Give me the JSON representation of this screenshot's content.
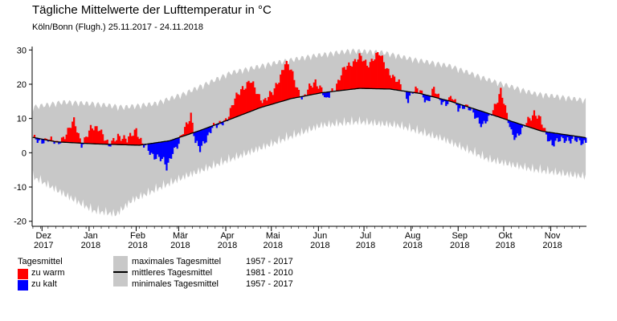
{
  "title": "Tägliche Mittelwerte der Lufttemperatur in °C",
  "subtitle": "Köln/Bonn (Flugh.)  25.11.2017 - 24.11.2018",
  "legend": {
    "group_title": "Tagesmittel",
    "too_warm": "zu warm",
    "too_cold": "zu kalt",
    "max_label": "maximales Tagesmittel",
    "max_period": "1957 - 2017",
    "mean_label": "mittleres Tagesmittel",
    "mean_period": "1981 - 2010",
    "min_label": "minimales Tagesmittel",
    "min_period": "1957 - 2017"
  },
  "colors": {
    "warm": "#ff0000",
    "cold": "#0000ff",
    "band": "#c8c8c8",
    "mean": "#000000"
  },
  "chart_data": {
    "type": "area",
    "title": "Tägliche Mittelwerte der Lufttemperatur in °C",
    "subtitle": "Köln/Bonn (Flugh.)  25.11.2017 - 24.11.2018",
    "xlabel": "",
    "ylabel": "°C",
    "ylim": [
      -21,
      31
    ],
    "yticks": [
      -20,
      -10,
      0,
      10,
      20,
      30
    ],
    "days": 365,
    "x_ticks": [
      {
        "month": "Dez",
        "year": "2017",
        "day": 6
      },
      {
        "month": "Jan",
        "year": "2018",
        "day": 37
      },
      {
        "month": "Feb",
        "year": "2018",
        "day": 68
      },
      {
        "month": "Mär",
        "year": "2018",
        "day": 96
      },
      {
        "month": "Apr",
        "year": "2018",
        "day": 127
      },
      {
        "month": "Mai",
        "year": "2018",
        "day": 157
      },
      {
        "month": "Jun",
        "year": "2018",
        "day": 188
      },
      {
        "month": "Jul",
        "year": "2018",
        "day": 218
      },
      {
        "month": "Aug",
        "year": "2018",
        "day": 249
      },
      {
        "month": "Sep",
        "year": "2018",
        "day": 280
      },
      {
        "month": "Okt",
        "year": "2018",
        "day": 310
      },
      {
        "month": "Nov",
        "year": "2018",
        "day": 341
      }
    ],
    "mean_keypoints": [
      [
        0,
        4.5
      ],
      [
        15,
        3.2
      ],
      [
        40,
        2.6
      ],
      [
        70,
        2.2
      ],
      [
        90,
        3.5
      ],
      [
        110,
        6.5
      ],
      [
        130,
        9.8
      ],
      [
        150,
        13.2
      ],
      [
        170,
        15.8
      ],
      [
        190,
        17.5
      ],
      [
        215,
        18.8
      ],
      [
        235,
        18.6
      ],
      [
        255,
        17.3
      ],
      [
        275,
        15.0
      ],
      [
        295,
        12.2
      ],
      [
        315,
        9.2
      ],
      [
        335,
        6.3
      ],
      [
        364,
        4.4
      ]
    ],
    "max_keypoints": [
      [
        0,
        12
      ],
      [
        20,
        13.5
      ],
      [
        40,
        13
      ],
      [
        60,
        12
      ],
      [
        80,
        13
      ],
      [
        100,
        16
      ],
      [
        130,
        22
      ],
      [
        160,
        25
      ],
      [
        185,
        27
      ],
      [
        210,
        28.5
      ],
      [
        230,
        28
      ],
      [
        250,
        26
      ],
      [
        275,
        24
      ],
      [
        300,
        20
      ],
      [
        330,
        16
      ],
      [
        364,
        14
      ]
    ],
    "min_keypoints": [
      [
        0,
        -5
      ],
      [
        20,
        -10
      ],
      [
        40,
        -15
      ],
      [
        55,
        -16
      ],
      [
        65,
        -12
      ],
      [
        80,
        -9
      ],
      [
        100,
        -5
      ],
      [
        130,
        0
      ],
      [
        160,
        5
      ],
      [
        190,
        10
      ],
      [
        215,
        11
      ],
      [
        240,
        10
      ],
      [
        270,
        6
      ],
      [
        300,
        0
      ],
      [
        330,
        -3
      ],
      [
        364,
        -5
      ]
    ],
    "anomaly_keypoints": [
      [
        0,
        0
      ],
      [
        4,
        -1.5
      ],
      [
        10,
        1
      ],
      [
        16,
        -1
      ],
      [
        22,
        3
      ],
      [
        27,
        6
      ],
      [
        32,
        0
      ],
      [
        38,
        4
      ],
      [
        44,
        5
      ],
      [
        50,
        -1
      ],
      [
        56,
        3
      ],
      [
        62,
        1
      ],
      [
        68,
        5
      ],
      [
        72,
        0
      ],
      [
        78,
        -3
      ],
      [
        82,
        -4
      ],
      [
        86,
        -6
      ],
      [
        88,
        -8
      ],
      [
        92,
        -3
      ],
      [
        96,
        -2
      ],
      [
        100,
        2
      ],
      [
        104,
        6
      ],
      [
        107,
        -3
      ],
      [
        110,
        -6
      ],
      [
        114,
        -3
      ],
      [
        118,
        0
      ],
      [
        122,
        -1
      ],
      [
        128,
        1
      ],
      [
        133,
        5
      ],
      [
        138,
        8
      ],
      [
        143,
        9
      ],
      [
        148,
        4
      ],
      [
        152,
        2
      ],
      [
        158,
        3
      ],
      [
        163,
        8
      ],
      [
        166,
        11
      ],
      [
        170,
        8
      ],
      [
        174,
        3
      ],
      [
        178,
        -1
      ],
      [
        182,
        2
      ],
      [
        186,
        4
      ],
      [
        190,
        1
      ],
      [
        193,
        -3
      ],
      [
        196,
        0
      ],
      [
        200,
        2
      ],
      [
        205,
        6
      ],
      [
        210,
        8
      ],
      [
        215,
        9
      ],
      [
        220,
        7
      ],
      [
        224,
        9
      ],
      [
        228,
        10
      ],
      [
        232,
        7
      ],
      [
        238,
        3
      ],
      [
        243,
        1
      ],
      [
        247,
        -2
      ],
      [
        250,
        0
      ],
      [
        255,
        1
      ],
      [
        260,
        -2
      ],
      [
        264,
        2
      ],
      [
        268,
        0
      ],
      [
        272,
        -1
      ],
      [
        276,
        1
      ],
      [
        280,
        -1
      ],
      [
        284,
        0
      ],
      [
        288,
        -1
      ],
      [
        292,
        -2
      ],
      [
        296,
        -4
      ],
      [
        300,
        -2
      ],
      [
        304,
        3
      ],
      [
        308,
        8
      ],
      [
        312,
        1
      ],
      [
        315,
        -3
      ],
      [
        318,
        -4
      ],
      [
        322,
        -2
      ],
      [
        326,
        2
      ],
      [
        330,
        5
      ],
      [
        334,
        3
      ],
      [
        338,
        -1
      ],
      [
        342,
        -3
      ],
      [
        348,
        -2
      ],
      [
        352,
        -1
      ],
      [
        356,
        -1
      ],
      [
        360,
        -2
      ],
      [
        364,
        -1
      ]
    ]
  }
}
